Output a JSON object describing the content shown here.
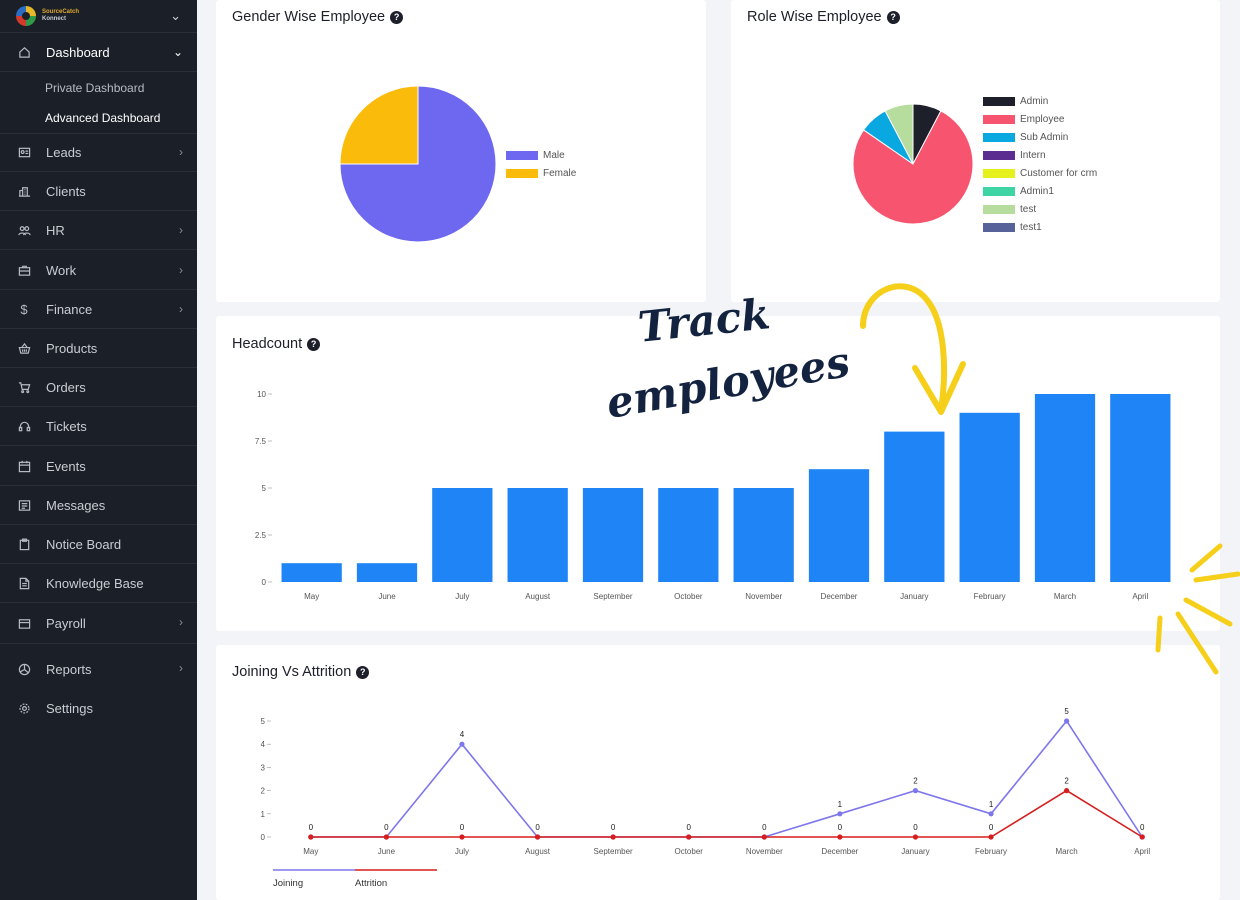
{
  "brand": {
    "line1": "SourceCatch",
    "line2": "Konnect"
  },
  "sidebar": {
    "items": [
      {
        "label": "Dashboard",
        "icon": "home-icon",
        "chevron": "chevron-down-icon"
      },
      {
        "label": "Leads",
        "icon": "id-card-icon",
        "chevron": "chevron-right-icon"
      },
      {
        "label": "Clients",
        "icon": "building-icon"
      },
      {
        "label": "HR",
        "icon": "users-icon",
        "chevron": "chevron-right-icon"
      },
      {
        "label": "Work",
        "icon": "briefcase-icon",
        "chevron": "chevron-right-icon"
      },
      {
        "label": "Finance",
        "icon": "dollar-icon",
        "chevron": "chevron-right-icon"
      },
      {
        "label": "Products",
        "icon": "basket-icon"
      },
      {
        "label": "Orders",
        "icon": "cart-icon"
      },
      {
        "label": "Tickets",
        "icon": "headset-icon"
      },
      {
        "label": "Events",
        "icon": "calendar-icon"
      },
      {
        "label": "Messages",
        "icon": "message-icon"
      },
      {
        "label": "Notice Board",
        "icon": "clipboard-icon"
      },
      {
        "label": "Knowledge Base",
        "icon": "document-icon"
      },
      {
        "label": "Payroll",
        "icon": "wallet-icon",
        "chevron": "chevron-right-icon"
      },
      {
        "label": "Reports",
        "icon": "pie-icon",
        "chevron": "chevron-right-icon"
      },
      {
        "label": "Settings",
        "icon": "gear-icon"
      }
    ],
    "sub_items": [
      {
        "label": "Private Dashboard"
      },
      {
        "label": "Advanced Dashboard"
      }
    ]
  },
  "cards": {
    "gender": {
      "title": "Gender Wise Employee"
    },
    "role": {
      "title": "Role Wise Employee"
    },
    "headcount": {
      "title": "Headcount"
    },
    "joining": {
      "title": "Joining Vs Attrition"
    }
  },
  "annotation": {
    "line1": "Track",
    "line2": "employees"
  },
  "chart_data": [
    {
      "type": "pie",
      "labels": [
        "Male",
        "Female"
      ],
      "values": [
        75,
        25
      ],
      "colors": [
        "#6e67ef",
        "#fbbb0a"
      ],
      "legend": "right"
    },
    {
      "type": "pie",
      "labels": [
        "Admin",
        "Employee",
        "Sub Admin",
        "Intern",
        "Customer for crm",
        "Admin1",
        "test",
        "test1"
      ],
      "values": [
        1,
        10,
        1,
        0,
        0,
        0,
        1,
        0
      ],
      "colors": [
        "#1d1f2a",
        "#f7546f",
        "#0aa8e0",
        "#5c2d91",
        "#e6f01a",
        "#3fd4a4",
        "#b6dd9e",
        "#58629a"
      ],
      "legend": "right"
    },
    {
      "type": "bar",
      "categories": [
        "May",
        "June",
        "July",
        "August",
        "September",
        "October",
        "November",
        "December",
        "January",
        "February",
        "March",
        "April"
      ],
      "values": [
        1,
        1,
        5,
        5,
        5,
        5,
        5,
        6,
        8,
        9,
        10,
        10
      ],
      "y_ticks": [
        "0",
        "2.5",
        "5",
        "7.5",
        "10"
      ],
      "ylim": [
        0,
        10
      ],
      "color": "#1f84f5",
      "grid": false
    },
    {
      "type": "line",
      "categories": [
        "May",
        "June",
        "July",
        "August",
        "September",
        "October",
        "November",
        "December",
        "January",
        "February",
        "March",
        "April"
      ],
      "series": [
        {
          "name": "Joining",
          "values": [
            0,
            0,
            4,
            0,
            0,
            0,
            0,
            1,
            2,
            1,
            5,
            0
          ],
          "color": "#7d76ec"
        },
        {
          "name": "Attrition",
          "values": [
            0,
            0,
            0,
            0,
            0,
            0,
            0,
            0,
            0,
            0,
            2,
            0
          ],
          "color": "#d71d1d"
        }
      ],
      "y_ticks": [
        "0",
        "1",
        "2",
        "3",
        "4",
        "5"
      ],
      "ylim": [
        0,
        5
      ],
      "legend": "bottom-left"
    }
  ]
}
